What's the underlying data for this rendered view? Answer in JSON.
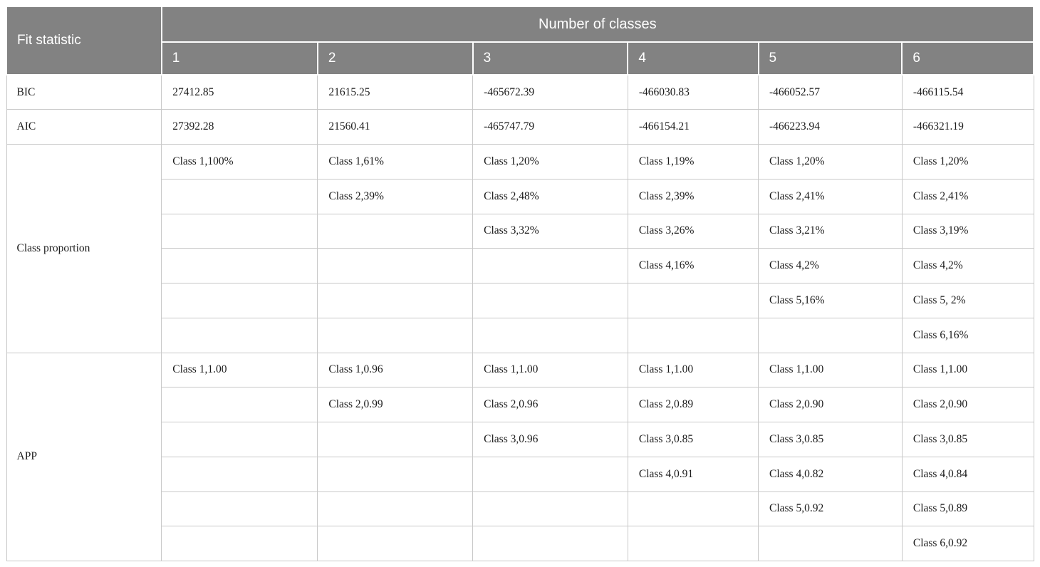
{
  "table": {
    "title_cell": "Fit statistic",
    "group_header": "Number of classes",
    "class_columns": [
      "1",
      "2",
      "3",
      "4",
      "5",
      "6"
    ],
    "sections": [
      {
        "label": "BIC",
        "rows": [
          [
            "27412.85",
            "21615.25",
            "-465672.39",
            "-466030.83",
            "-466052.57",
            "-466115.54"
          ]
        ]
      },
      {
        "label": "AIC",
        "rows": [
          [
            "27392.28",
            "21560.41",
            "-465747.79",
            "-466154.21",
            "-466223.94",
            "-466321.19"
          ]
        ]
      },
      {
        "label": "Class proportion",
        "rows": [
          [
            "Class 1,100%",
            "Class 1,61%",
            "Class 1,20%",
            "Class 1,19%",
            "Class 1,20%",
            "Class 1,20%"
          ],
          [
            "",
            "Class 2,39%",
            "Class 2,48%",
            "Class 2,39%",
            "Class 2,41%",
            "Class 2,41%"
          ],
          [
            "",
            "",
            "Class 3,32%",
            "Class 3,26%",
            "Class 3,21%",
            "Class 3,19%"
          ],
          [
            "",
            "",
            "",
            "Class 4,16%",
            "Class 4,2%",
            "Class 4,2%"
          ],
          [
            "",
            "",
            "",
            "",
            "Class 5,16%",
            "Class 5, 2%"
          ],
          [
            "",
            "",
            "",
            "",
            "",
            "Class 6,16%"
          ]
        ]
      },
      {
        "label": "APP",
        "rows": [
          [
            "Class 1,1.00",
            "Class 1,0.96",
            "Class 1,1.00",
            "Class 1,1.00",
            "Class 1,1.00",
            "Class 1,1.00"
          ],
          [
            "",
            "Class 2,0.99",
            "Class 2,0.96",
            "Class 2,0.89",
            "Class 2,0.90",
            "Class 2,0.90"
          ],
          [
            "",
            "",
            "Class 3,0.96",
            "Class 3,0.85",
            "Class 3,0.85",
            "Class 3,0.85"
          ],
          [
            "",
            "",
            "",
            "Class 4,0.91",
            "Class 4,0.82",
            "Class 4,0.84"
          ],
          [
            "",
            "",
            "",
            "",
            "Class 5,0.92",
            "Class 5,0.89"
          ],
          [
            "",
            "",
            "",
            "",
            "",
            "Class 6,0.92"
          ]
        ]
      }
    ],
    "colors": {
      "header_bg": "#828282",
      "header_text": "#ffffff",
      "grid_line": "#c8c8c8",
      "body_text": "#1b1b1b"
    }
  }
}
